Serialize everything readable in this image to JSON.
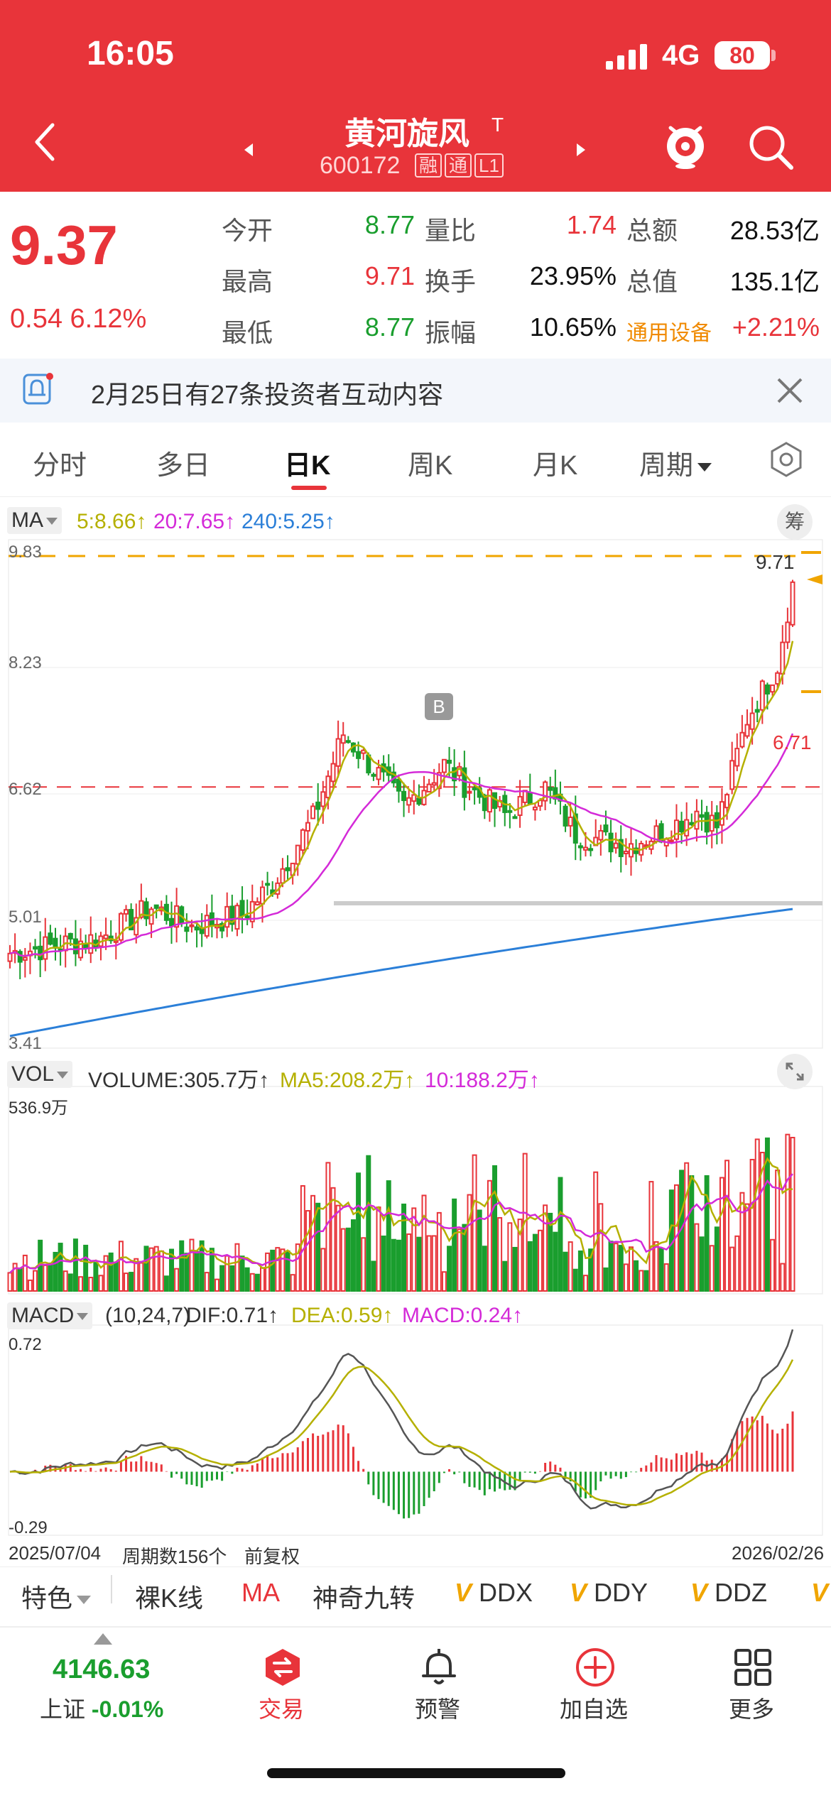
{
  "status": {
    "time": "16:05",
    "network": "4G",
    "battery": "80"
  },
  "header": {
    "name": "黄河旋风",
    "mark": "T",
    "code": "600172",
    "tags": [
      "融",
      "通",
      "L1"
    ]
  },
  "quote": {
    "price": "9.37",
    "change": "0.54  6.12%",
    "rows": [
      {
        "l1": "今开",
        "v1": "8.77",
        "l2": "量比",
        "v2": "1.74",
        "l3": "总额",
        "v3": "28.53亿"
      },
      {
        "l1": "最高",
        "v1": "9.71",
        "l2": "换手",
        "v2": "23.95%",
        "l3": "总值",
        "v3": "135.1亿"
      },
      {
        "l1": "最低",
        "v1": "8.77",
        "l2": "振幅",
        "v2": "10.65%",
        "l3": "通用设备",
        "v3": "+2.21%"
      }
    ]
  },
  "notice": {
    "text": "2月25日有27条投资者互动内容"
  },
  "tabs": [
    "分时",
    "多日",
    "日K",
    "周K",
    "月K",
    "周期"
  ],
  "active_tab": "日K",
  "main_chart": {
    "indicator": "MA",
    "ma5": "5:8.66↑",
    "ma20": "20:7.65↑",
    "ma240": "240:5.25↑",
    "y_max": "9.83",
    "y_ticks": [
      "8.23",
      "6.62",
      "5.01"
    ],
    "y_min": "3.41",
    "high_mark": "9.71",
    "ref_line": "6.71",
    "buy_marker": "B",
    "chip_label": "筹"
  },
  "volume_chart": {
    "indicator": "VOL",
    "volume": "VOLUME:305.7万↑",
    "ma5": "MA5:208.2万↑",
    "ma10": "10:188.2万↑",
    "y_max": "536.9万"
  },
  "macd_chart": {
    "indicator": "MACD",
    "params": "(10,24,7)",
    "dif": "DIF:0.71↑",
    "dea": "DEA:0.59↑",
    "macd": "MACD:0.24↑",
    "y_max": "0.72",
    "y_min": "-0.29"
  },
  "footer_axis": {
    "start_date": "2025/07/04",
    "period_count": "周期数156个",
    "adjust": "前复权",
    "end_date": "2026/02/26"
  },
  "indicators": [
    "特色",
    "裸K线",
    "MA",
    "神奇九转",
    "DDX",
    "DDY",
    "DDZ",
    "V"
  ],
  "bottom_nav": {
    "index_value": "4146.63",
    "index_name": "上证",
    "index_change": "-0.01%",
    "items": [
      "交易",
      "预警",
      "加自选",
      "更多"
    ]
  },
  "colors": {
    "up": "#e8343a",
    "down": "#1a9e2e",
    "ma5": "#b5b000",
    "ma20": "#d42ad8",
    "ma240": "#2b7fd8",
    "accent": "#f0a500"
  }
}
